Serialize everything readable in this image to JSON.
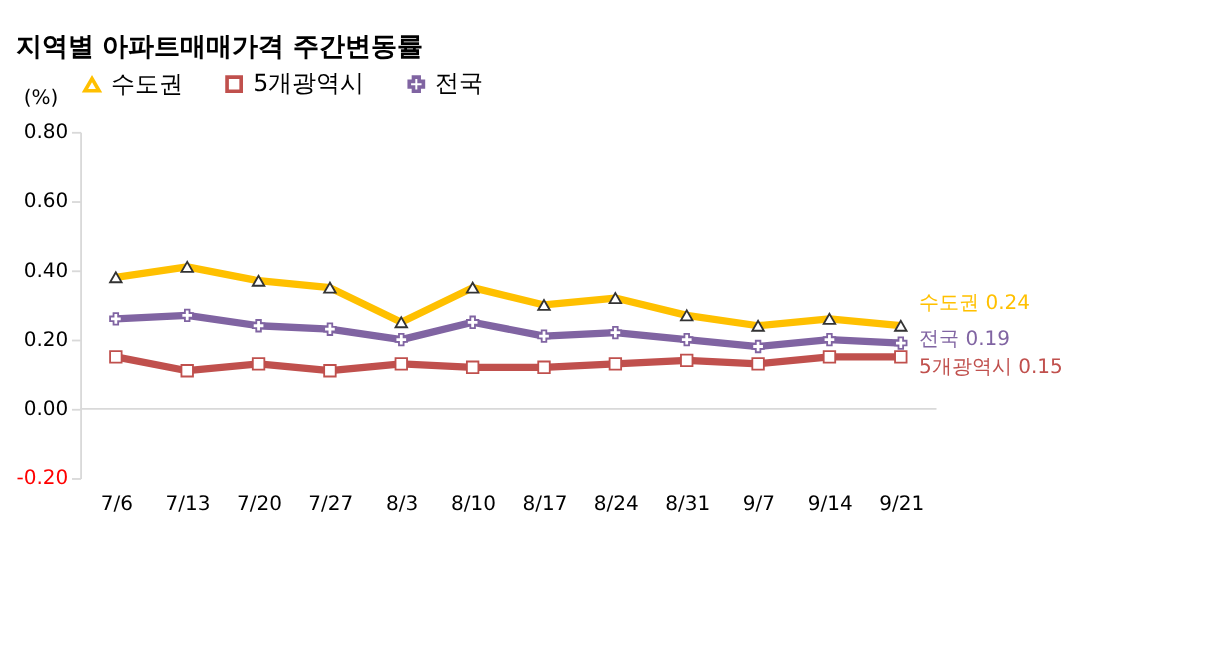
{
  "chart_data": {
    "type": "line",
    "title": "지역별 아파트매매가격 주간변동률",
    "ylabel": "(%)",
    "categories": [
      "7/6",
      "7/13",
      "7/20",
      "7/27",
      "8/3",
      "8/10",
      "8/17",
      "8/24",
      "8/31",
      "9/7",
      "9/14",
      "9/21"
    ],
    "series": [
      {
        "name": "수도권",
        "color": "#ffc000",
        "marker": "triangle",
        "values": [
          0.38,
          0.41,
          0.37,
          0.35,
          0.25,
          0.35,
          0.3,
          0.32,
          0.27,
          0.24,
          0.26,
          0.24
        ]
      },
      {
        "name": "5개광역시",
        "color": "#c0504d",
        "marker": "square",
        "values": [
          0.15,
          0.11,
          0.13,
          0.11,
          0.13,
          0.12,
          0.12,
          0.13,
          0.14,
          0.13,
          0.15,
          0.15
        ]
      },
      {
        "name": "전국",
        "color": "#8064a2",
        "marker": "cross",
        "values": [
          0.26,
          0.27,
          0.24,
          0.23,
          0.2,
          0.25,
          0.21,
          0.22,
          0.2,
          0.18,
          0.2,
          0.19
        ]
      }
    ],
    "annotations": [
      {
        "text": "수도권 0.24",
        "x": "9/21",
        "y": 0.24
      },
      {
        "text": "5개광역시 0.15",
        "x": "9/21",
        "y": 0.15
      },
      {
        "text": "전국 0.19",
        "x": "9/21",
        "y": 0.19
      }
    ],
    "ylim": [
      -0.2,
      0.8
    ],
    "yticks": [
      {
        "value": -0.2,
        "label": "-0.20"
      },
      {
        "value": 0,
        "label": "0.00"
      },
      {
        "value": 0.2,
        "label": "0.20"
      },
      {
        "value": 0.4,
        "label": "0.40"
      },
      {
        "value": 0.6,
        "label": "0.60"
      },
      {
        "value": 0.8,
        "label": "0.80"
      }
    ],
    "ref_lines": [
      {
        "axis": "y",
        "value": 0,
        "color": "#d9d9d9"
      }
    ],
    "grid": false,
    "legend": "top",
    "line_style": "solid"
  }
}
